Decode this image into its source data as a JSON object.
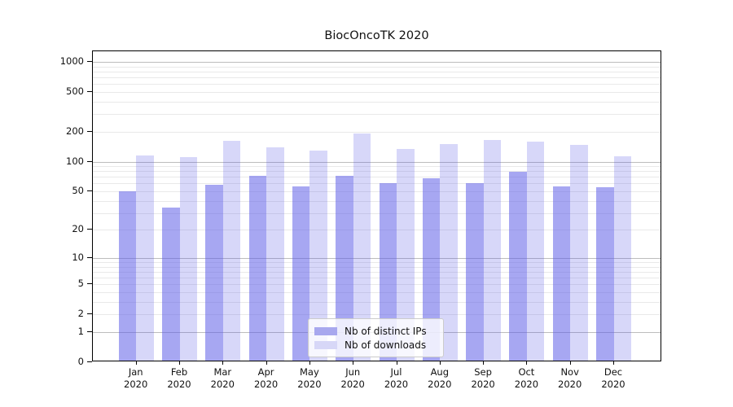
{
  "chart_data": {
    "type": "bar",
    "title": "BiocOncoTK 2020",
    "xlabel": "",
    "ylabel": "",
    "year": "2020",
    "categories": [
      "Jan",
      "Feb",
      "Mar",
      "Apr",
      "May",
      "Jun",
      "Jul",
      "Aug",
      "Sep",
      "Oct",
      "Nov",
      "Dec"
    ],
    "series": [
      {
        "name": "Nb of distinct IPs",
        "values": [
          48,
          33,
          56,
          69,
          54,
          69,
          58,
          65,
          58,
          76,
          54,
          53
        ],
        "color": "rgba(88, 88, 230, 0.53)",
        "legend_color": "#a8a8ee"
      },
      {
        "name": "Nb of downloads",
        "values": [
          111,
          106,
          156,
          134,
          125,
          185,
          130,
          144,
          160,
          153,
          142,
          109
        ],
        "color": "rgba(88, 88, 230, 0.24)",
        "legend_color": "#d7d7f7"
      }
    ],
    "y_axis": {
      "scale": "log(v+1)",
      "tick_values": [
        1000,
        500,
        200,
        100,
        50,
        20,
        10,
        5,
        2,
        1,
        0
      ],
      "major_gridlines": [
        1,
        10,
        100,
        1000
      ],
      "minor_gridlines": [
        2,
        3,
        4,
        5,
        6,
        7,
        8,
        9,
        20,
        30,
        40,
        50,
        60,
        70,
        80,
        90,
        200,
        300,
        400,
        500,
        600,
        700,
        800,
        900
      ],
      "ylim": [
        0,
        1275
      ]
    },
    "grid": true,
    "legend_position": "lower center"
  },
  "colors": {
    "background": "#ffffff",
    "axis": "#000000",
    "text": "#111111",
    "major_grid": "#bdbdbd",
    "minor_grid": "#e9e9e9",
    "legend_border": "#cccccc"
  }
}
